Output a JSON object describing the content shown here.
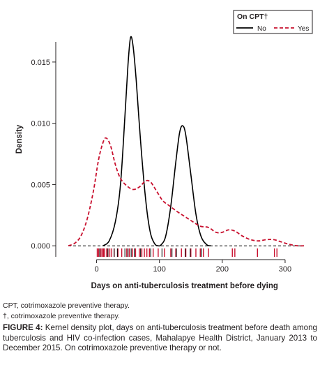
{
  "chart_data": {
    "type": "line",
    "title": "",
    "xlabel": "Days on anti-tuberculosis treatment before dying",
    "ylabel": "Density",
    "xlim": [
      -65,
      340
    ],
    "ylim": [
      -0.0009,
      0.0175
    ],
    "x_ticks": [
      0,
      100,
      200,
      300
    ],
    "x_tick_labels": [
      "0",
      "100",
      "200",
      "300"
    ],
    "y_ticks": [
      0,
      0.005,
      0.01,
      0.015
    ],
    "y_tick_labels": [
      "0.000",
      "0.005",
      "0.010",
      "0.015"
    ],
    "reference_line_y": 0,
    "grid": false,
    "legend": {
      "title": "On CPT†",
      "placement": "top-right",
      "entries": [
        {
          "label": "No",
          "color": "#000000",
          "style": "solid"
        },
        {
          "label": "Yes",
          "color": "#c8102e",
          "style": "dashed"
        }
      ]
    },
    "series": [
      {
        "name": "No",
        "color": "#000000",
        "style": "solid",
        "points": [
          [
            10,
            0.0
          ],
          [
            20,
            0.0004
          ],
          [
            30,
            0.002
          ],
          [
            38,
            0.005
          ],
          [
            45,
            0.0105
          ],
          [
            50,
            0.0148
          ],
          [
            54,
            0.017
          ],
          [
            58,
            0.0163
          ],
          [
            63,
            0.0135
          ],
          [
            70,
            0.0085
          ],
          [
            78,
            0.0038
          ],
          [
            85,
            0.0012
          ],
          [
            92,
            0.0002
          ],
          [
            98,
            0.0
          ],
          [
            103,
            0.0001
          ],
          [
            110,
            0.0008
          ],
          [
            118,
            0.0032
          ],
          [
            126,
            0.0068
          ],
          [
            132,
            0.0092
          ],
          [
            137,
            0.0098
          ],
          [
            142,
            0.009
          ],
          [
            150,
            0.0058
          ],
          [
            158,
            0.0026
          ],
          [
            166,
            0.0008
          ],
          [
            175,
            0.0001
          ],
          [
            182,
            0.0
          ]
        ]
      },
      {
        "name": "Yes",
        "color": "#c8102e",
        "style": "dashed",
        "points": [
          [
            -45,
            0.0
          ],
          [
            -35,
            0.0002
          ],
          [
            -25,
            0.0008
          ],
          [
            -15,
            0.0022
          ],
          [
            -5,
            0.0045
          ],
          [
            3,
            0.007
          ],
          [
            10,
            0.0084
          ],
          [
            15,
            0.0088
          ],
          [
            22,
            0.0082
          ],
          [
            30,
            0.0066
          ],
          [
            38,
            0.0055
          ],
          [
            48,
            0.0049
          ],
          [
            58,
            0.0046
          ],
          [
            68,
            0.0048
          ],
          [
            78,
            0.0053
          ],
          [
            86,
            0.0052
          ],
          [
            95,
            0.0045
          ],
          [
            105,
            0.0037
          ],
          [
            115,
            0.0033
          ],
          [
            128,
            0.0028
          ],
          [
            140,
            0.0024
          ],
          [
            152,
            0.002
          ],
          [
            165,
            0.0016
          ],
          [
            178,
            0.0015
          ],
          [
            190,
            0.0011
          ],
          [
            200,
            0.0011
          ],
          [
            210,
            0.0013
          ],
          [
            220,
            0.0012
          ],
          [
            232,
            0.0008
          ],
          [
            245,
            0.0005
          ],
          [
            258,
            0.0004
          ],
          [
            270,
            0.0005
          ],
          [
            282,
            0.0005
          ],
          [
            295,
            0.0003
          ],
          [
            308,
            0.0001
          ],
          [
            320,
            0.0
          ],
          [
            330,
            0.0
          ]
        ]
      }
    ],
    "rug": {
      "Yes": [
        1,
        3,
        5,
        7,
        9,
        11,
        13,
        16,
        18,
        21,
        24,
        28,
        34,
        40,
        48,
        52,
        57,
        62,
        68,
        72,
        76,
        80,
        84,
        90,
        98,
        108,
        118,
        126,
        135,
        142,
        150,
        158,
        165,
        170,
        178,
        216,
        220,
        256,
        283,
        287
      ],
      "No": [
        5,
        18,
        28,
        33,
        45,
        50,
        55,
        60,
        70,
        86,
        104,
        120,
        127,
        141,
        149,
        167
      ]
    }
  },
  "footnotes": [
    "CPT, cotrimoxazole preventive therapy.",
    "†, cotrimoxazole preventive therapy."
  ],
  "caption": {
    "label": "FIGURE 4:",
    "text": " Kernel density plot, days on anti-tuberculosis treatment before death among tuberculosis and HIV co-infection cases, Mahalapye Health District, January 2013 to December 2015. On cotrimoxazole preventive therapy or not."
  }
}
